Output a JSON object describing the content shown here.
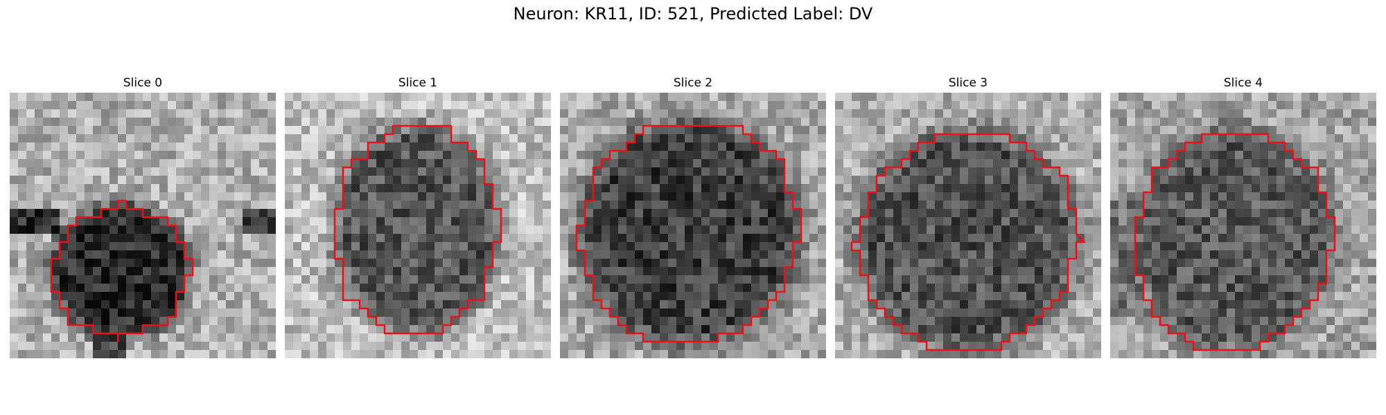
{
  "figure": {
    "title": "Neuron: KR11, ID: 521, Predicted Label: DV",
    "contour_color": "#e8131a",
    "colormap": "gray",
    "panels": [
      {
        "title": "Slice 0"
      },
      {
        "title": "Slice 1"
      },
      {
        "title": "Slice 2"
      },
      {
        "title": "Slice 3"
      },
      {
        "title": "Slice 4"
      }
    ]
  }
}
